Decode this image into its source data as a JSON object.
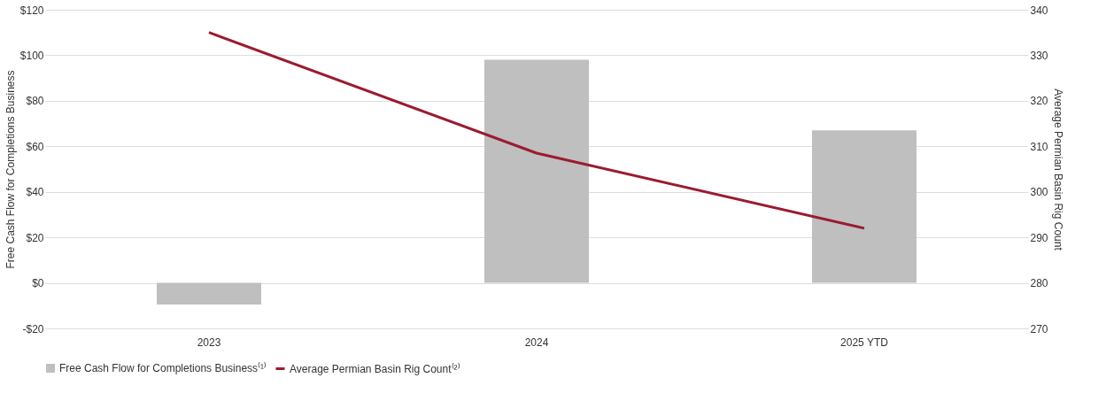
{
  "chart_data": {
    "type": "bar",
    "categories": [
      "2023",
      "2024",
      "2025 YTD"
    ],
    "ylabel": "Free Cash Flow for Completions Business",
    "y2label": "Average Permian Basin Rig Count",
    "series": [
      {
        "name": "Free Cash Flow for Completions Business⁽¹⁾",
        "color": "#bfbfbf",
        "values": [
          -9.5,
          98,
          67
        ]
      },
      {
        "name": "Average Permian Basin Rig Count⁽²⁾",
        "type": "line",
        "axis": "y2",
        "color": "#9b1b30",
        "values": [
          335,
          308.5,
          292
        ]
      }
    ],
    "ylim": [
      -20,
      120
    ],
    "yticks": [
      {
        "value": -20,
        "label": "-$20"
      },
      {
        "value": 0,
        "label": "$0"
      },
      {
        "value": 20,
        "label": "$20"
      },
      {
        "value": 40,
        "label": "$40"
      },
      {
        "value": 60,
        "label": "$60"
      },
      {
        "value": 80,
        "label": "$80"
      },
      {
        "value": 100,
        "label": "$100"
      },
      {
        "value": 120,
        "label": "$120"
      }
    ],
    "y2lim": [
      270,
      340
    ],
    "y2ticks": [
      270,
      280,
      290,
      300,
      310,
      320,
      330,
      340
    ],
    "grid": "y",
    "legend": "bottom",
    "marker": "none",
    "line_style": "solid"
  }
}
